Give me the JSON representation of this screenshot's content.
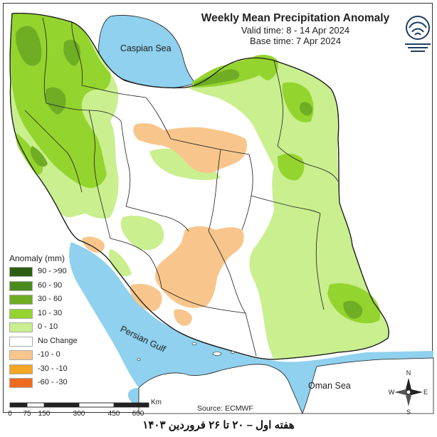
{
  "title": "Weekly Mean Precipitation Anomaly",
  "valid_time": "Valid time: 8 - 14 Apr 2024",
  "base_time": "Base time: 7 Apr 2024",
  "legend": {
    "title": "Anomaly (mm)",
    "items": [
      {
        "label": "90 - >90",
        "color": "#2e5e12"
      },
      {
        "label": "60 - 90",
        "color": "#4a8a1c"
      },
      {
        "label": "30 - 60",
        "color": "#6fad25"
      },
      {
        "label": "10 - 30",
        "color": "#94d42e"
      },
      {
        "label": "0 - 10",
        "color": "#c9ef8f"
      },
      {
        "label": "No Change",
        "color": "#ffffff"
      },
      {
        "label": "-10 - 0",
        "color": "#f8c68c"
      },
      {
        "label": "-30 - -10",
        "color": "#f5a623"
      },
      {
        "label": "-60 - -30",
        "color": "#ef6b1f"
      }
    ]
  },
  "scale": {
    "ticks": [
      "0",
      "75",
      "150",
      "300",
      "450",
      "600"
    ],
    "unit": "Km"
  },
  "source": "Source: ECMWF",
  "seas": {
    "caspian": "Caspian Sea",
    "gulf": "Persian Gulf",
    "oman": "Oman Sea"
  },
  "compass": {
    "n": "N",
    "s": "S",
    "e": "E",
    "w": "W"
  },
  "caption": "هفته اول – ۲۰ تا ۲۶ فروردین ۱۴۰۳",
  "colors": {
    "sea": "#8fd1ee",
    "boundary": "#1a1a1a"
  }
}
